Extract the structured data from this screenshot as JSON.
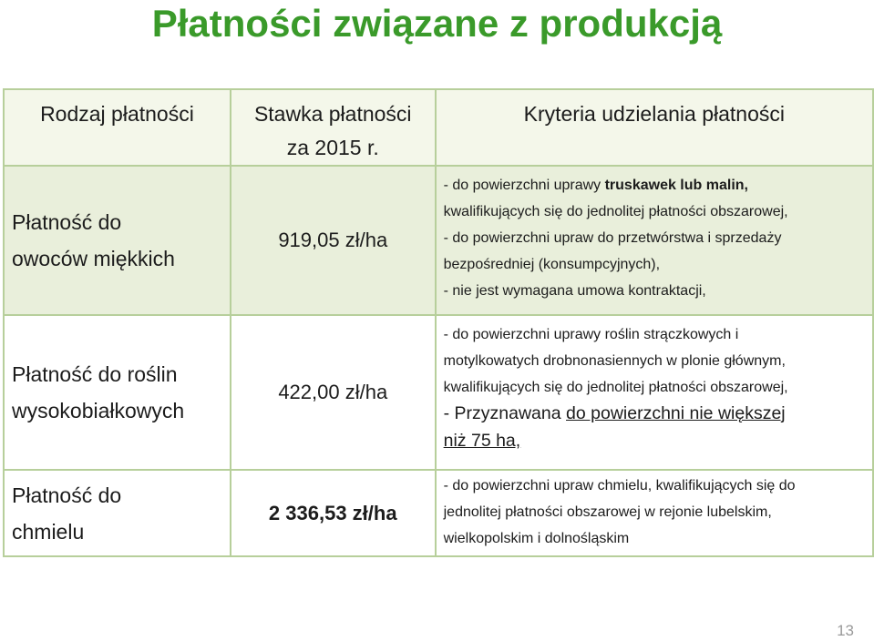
{
  "title": "Płatności związane z produkcją",
  "headers": {
    "col1": "Rodzaj płatności",
    "col2_line1": "Stawka płatności",
    "col2_line2": "za 2015 r.",
    "col3": "Kryteria udzielania płatności"
  },
  "rows": [
    {
      "type_line1": "Płatność do",
      "type_line2": "owoców miękkich",
      "rate": "919,05 zł/ha",
      "c1a": "- do powierzchni uprawy ",
      "c1b": "truskawek lub malin,",
      "c2": "kwalifikujących się do jednolitej płatności obszarowej,",
      "c3": "- do powierzchni upraw do przetwórstwa i sprzedaży",
      "c4": "bezpośredniej (konsumpcyjnych),",
      "c5": "- nie jest wymagana umowa kontraktacji,"
    },
    {
      "type_line1": "Płatność do roślin",
      "type_line2": "wysokobiałkowych",
      "rate": "422,00 zł/ha",
      "c1": "- do powierzchni uprawy roślin strączkowych i",
      "c2": "motylkowatych drobnonasiennych w plonie głównym,",
      "c3": "kwalifikujących się do jednolitej płatności obszarowej,",
      "c4a": "- Przyznawana ",
      "c4b": "do powierzchni nie większej",
      "c5": " niż 75 ha,"
    },
    {
      "type_line1": "Płatność do",
      "type_line2": "chmielu",
      "rate": "2 336,53 zł/ha",
      "c1": "- do powierzchni upraw chmielu, kwalifikujących się do",
      "c2": "jednolitej płatności obszarowej w rejonie lubelskim,",
      "c3": "wielkopolskim i dolnośląskim"
    }
  ],
  "page_number": "13"
}
